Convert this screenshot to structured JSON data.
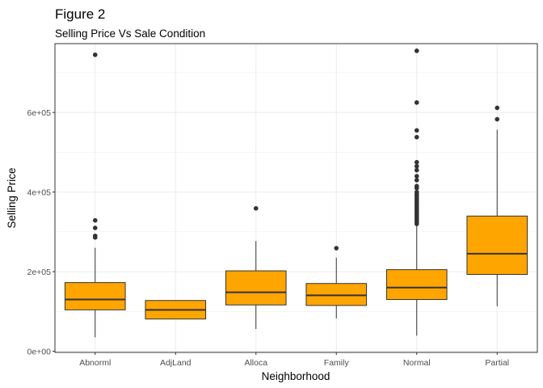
{
  "chart_data": {
    "type": "boxplot",
    "title": "Figure 2",
    "subtitle": "Selling Price Vs Sale Condition",
    "xlabel": "Neighborhood",
    "ylabel": "Selling Price",
    "ylim": [
      -3000,
      773000
    ],
    "yticks": [
      0,
      200000,
      400000,
      600000
    ],
    "ytick_labels": [
      "0e+00",
      "2e+05",
      "4e+05",
      "6e+05"
    ],
    "grid": true,
    "legend": "none",
    "box_fill": "#FFA500",
    "box_stroke": "#333333",
    "outlier_color": "#333333",
    "grid_color": "#EBEBEB",
    "categories": [
      "Abnorml",
      "AdjLand",
      "Alloca",
      "Family",
      "Normal",
      "Partial"
    ],
    "boxes": [
      {
        "category": "Abnorml",
        "min": 35000,
        "q1": 104000,
        "median": 130000,
        "q3": 172500,
        "max": 260000,
        "outliers": [
          745000,
          328900,
          310000,
          290000,
          286000
        ]
      },
      {
        "category": "AdjLand",
        "min": 81000,
        "q1": 81000,
        "median": 104000,
        "q3": 127500,
        "max": 127500,
        "outliers": []
      },
      {
        "category": "Alloca",
        "min": 55993,
        "q1": 116383,
        "median": 148145,
        "q3": 202043,
        "max": 277000,
        "outliers": [
          359100
        ]
      },
      {
        "category": "Family",
        "min": 82500,
        "q1": 115000,
        "median": 140500,
        "q3": 170250,
        "max": 235000,
        "outliers": [
          259000
        ]
      },
      {
        "category": "Normal",
        "min": 39300,
        "q1": 130000,
        "median": 160000,
        "q3": 205000,
        "max": 315000,
        "outliers": [
          755000,
          625000,
          555000,
          538000,
          475000,
          465000,
          455000,
          440000,
          430000,
          415000,
          410000,
          400000,
          395000,
          390000,
          385000,
          380000,
          375000,
          370000,
          365000,
          360000,
          355000,
          350000,
          345000,
          340000,
          335000,
          330000,
          325000,
          320000
        ]
      },
      {
        "category": "Partial",
        "min": 113000,
        "q1": 193000,
        "median": 245000,
        "q3": 339750,
        "max": 556581,
        "outliers": [
          611657,
          582933
        ]
      }
    ]
  }
}
